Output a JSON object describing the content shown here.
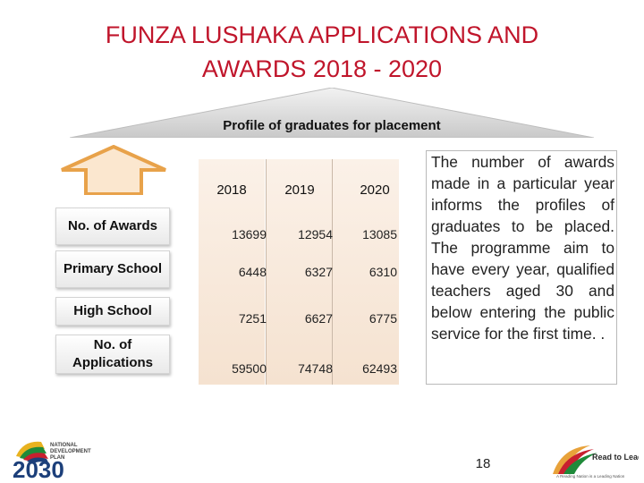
{
  "slide": {
    "title_line1": "FUNZA LUSHAKA APPLICATIONS AND",
    "title_line2": "AWARDS 2018 - 2020",
    "banner_text": "Profile of graduates for placement",
    "row_labels": [
      "No. of Awards",
      "Primary School",
      "High School",
      "No. of Applications"
    ],
    "years": [
      "2018",
      "2019",
      "2020"
    ],
    "rows": [
      [
        "13699",
        "12954",
        "13085"
      ],
      [
        "6448",
        "6327",
        "6310"
      ],
      [
        "7251",
        "6627",
        "6775"
      ],
      [
        "59500",
        "74748",
        "62493"
      ]
    ],
    "description": "The number of awards made in a particular year informs the profiles of graduates to be placed. The programme aim to have every year, qualified teachers aged 30 and below entering the public service for the first time. .",
    "page_number": "18"
  },
  "logos": {
    "ndp_line1": "NATIONAL",
    "ndp_line2": "DEVELOPMENT",
    "ndp_line3": "PLAN",
    "ndp_year": "2030",
    "rtl_title": "Read to Lead",
    "rtl_tagline": "A Reading Nation is a Leading Nation"
  },
  "colors": {
    "title": "#c0152b",
    "arrow_fill": "#fbe7cf",
    "arrow_stroke": "#e8a24a",
    "table_bg": "#f7e6d6",
    "ndp_blue": "#1c3f7a"
  }
}
